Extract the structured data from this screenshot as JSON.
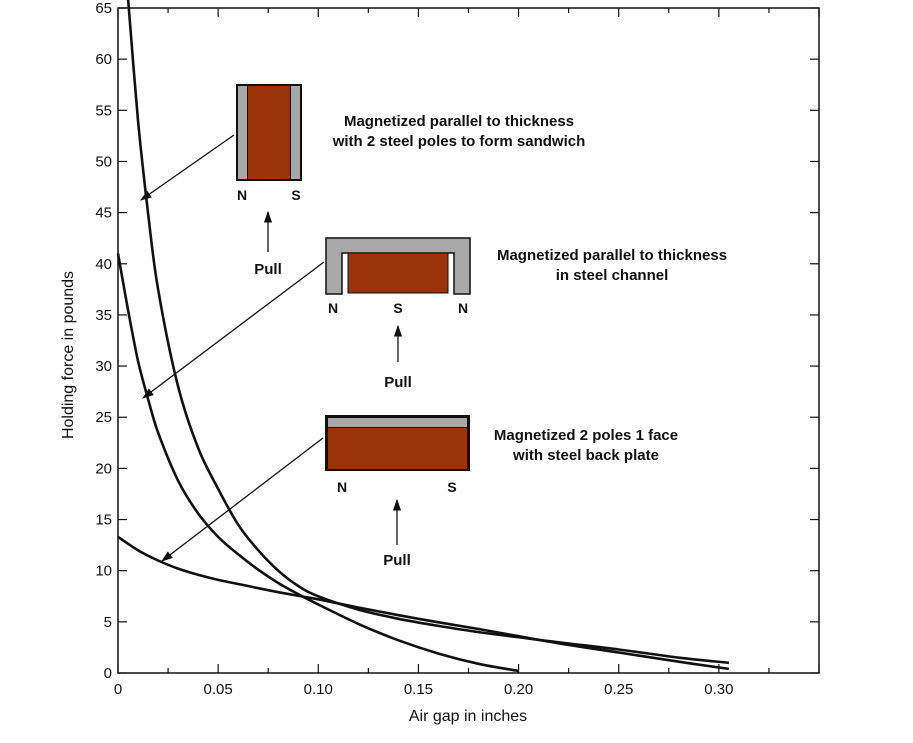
{
  "chart_data": {
    "type": "line",
    "xlabel": "Air gap in inches",
    "ylabel": "Holding force in pounds",
    "xlim": [
      0,
      0.35
    ],
    "ylim": [
      0,
      65
    ],
    "xticks": [
      0,
      0.05,
      0.1,
      0.15,
      0.2,
      0.25,
      0.3
    ],
    "xtick_labels": [
      "0",
      "0.05",
      "0.10",
      "0.15",
      "0.20",
      "0.25",
      "0.30"
    ],
    "yticks": [
      0,
      5,
      10,
      15,
      20,
      25,
      30,
      35,
      40,
      45,
      50,
      55,
      60,
      65
    ],
    "ytick_labels": [
      "0",
      "5",
      "10",
      "15",
      "20",
      "25",
      "30",
      "35",
      "40",
      "45",
      "50",
      "55",
      "60",
      "65"
    ],
    "grid": false,
    "series": [
      {
        "x": [
          0.005,
          0.01,
          0.015,
          0.02,
          0.03,
          0.04,
          0.05,
          0.06,
          0.07,
          0.08,
          0.09,
          0.1,
          0.12,
          0.14,
          0.16,
          0.18,
          0.2,
          0.22,
          0.25,
          0.28,
          0.305
        ],
        "values": [
          66,
          54,
          45,
          37.5,
          28,
          22,
          18,
          14.5,
          12,
          10,
          8.5,
          7.5,
          6.2,
          5.3,
          4.6,
          4.0,
          3.5,
          3.0,
          2.3,
          1.5,
          1.0
        ]
      },
      {
        "x": [
          0.0,
          0.005,
          0.01,
          0.015,
          0.02,
          0.03,
          0.04,
          0.05,
          0.06,
          0.07,
          0.08,
          0.09,
          0.1,
          0.12,
          0.14,
          0.16,
          0.18,
          0.2
        ],
        "values": [
          41,
          35.5,
          30.5,
          26.8,
          23.5,
          18.8,
          15.6,
          13.3,
          11.6,
          10.1,
          8.8,
          7.7,
          6.7,
          4.8,
          3.2,
          1.9,
          0.9,
          0.2
        ]
      },
      {
        "x": [
          0.0,
          0.01,
          0.02,
          0.03,
          0.04,
          0.05,
          0.06,
          0.08,
          0.1,
          0.12,
          0.15,
          0.18,
          0.2,
          0.22,
          0.25,
          0.28,
          0.305
        ],
        "values": [
          13.3,
          12.0,
          11.0,
          10.2,
          9.6,
          9.1,
          8.7,
          7.9,
          7.2,
          6.4,
          5.3,
          4.3,
          3.6,
          2.9,
          2.0,
          1.1,
          0.4
        ]
      }
    ],
    "annotations": [
      {
        "text_lines": [
          "Magnetized parallel to thickness",
          "with 2 steel poles to form sandwich"
        ],
        "poles": [
          "N",
          "S"
        ],
        "pull_label": "Pull",
        "points_to_series": 0,
        "arrow_tip": [
          0.012,
          48.5
        ]
      },
      {
        "text_lines": [
          "Magnetized parallel to thickness",
          "in steel channel"
        ],
        "poles": [
          "N",
          "S",
          "N"
        ],
        "pull_label": "Pull",
        "points_to_series": 1,
        "arrow_tip": [
          0.012,
          27.5
        ]
      },
      {
        "text_lines": [
          "Magnetized 2 poles 1 face",
          "with steel back plate"
        ],
        "poles": [
          "N",
          "S"
        ],
        "pull_label": "Pull",
        "points_to_series": 2,
        "arrow_tip": [
          0.022,
          11.3
        ]
      }
    ]
  },
  "colors": {
    "magnet": "#9b3208",
    "steel": "#a8a8a8",
    "ink": "#111111"
  }
}
